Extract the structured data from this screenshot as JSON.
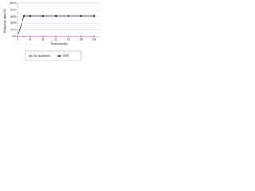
{
  "chart_data": {
    "type": "line",
    "x_label": "Time (weeks)",
    "y_label": "Response rate (%)",
    "x": [
      0,
      2,
      4,
      8,
      12,
      16,
      20,
      24
    ],
    "series": [
      {
        "name": "No treatment",
        "color": "#e040c0",
        "values": [
          0,
          0,
          0,
          0,
          0,
          0,
          0,
          0
        ]
      },
      {
        "name": "DSR",
        "color": "#3a2a7a",
        "values": [
          0,
          62,
          62,
          62,
          62,
          62,
          62,
          62
        ]
      }
    ],
    "xlim": [
      0,
      26
    ],
    "xticks": [
      0,
      4,
      8,
      12,
      16,
      20,
      24
    ],
    "ylim": [
      0,
      100
    ],
    "yticks": [
      {
        "value": 0,
        "label": "0%"
      },
      {
        "value": 20,
        "label": "20%"
      },
      {
        "value": 40,
        "label": "40%"
      },
      {
        "value": 60,
        "label": "60%"
      },
      {
        "value": 80,
        "label": "80%"
      },
      {
        "value": 100,
        "label": "100%"
      }
    ],
    "grid": true
  }
}
